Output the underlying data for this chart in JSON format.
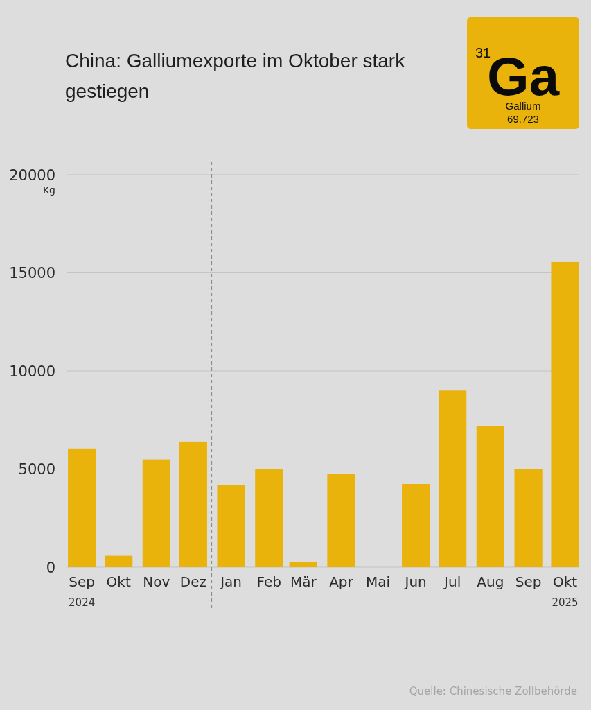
{
  "chart_data": {
    "type": "bar",
    "title": "China: Galliumexporte im Oktober stark gestiegen",
    "ylabel": "Kg",
    "x": [
      "2024-09",
      "2024-10",
      "2024-11",
      "2024-12",
      "2025-01",
      "2025-02",
      "2025-03",
      "2025-04",
      "2025-05",
      "2025-06",
      "2025-07",
      "2025-08",
      "2025-09",
      "2025-10"
    ],
    "values": [
      6050,
      580,
      5490,
      6400,
      4190,
      5000,
      270,
      4770,
      0,
      4240,
      9000,
      7180,
      5000,
      15550
    ],
    "color": "#e9b30c",
    "xlim": [
      "2024-08-20",
      "2025-10-12"
    ],
    "xticks": [
      {
        "value": "2024-09",
        "label": "Sep"
      },
      {
        "value": "2024-10",
        "label": "Okt"
      },
      {
        "value": "2024-11",
        "label": "Nov"
      },
      {
        "value": "2024-12",
        "label": "Dez"
      },
      {
        "value": "2025-01",
        "label": "Jan"
      },
      {
        "value": "2025-02",
        "label": "Feb"
      },
      {
        "value": "2025-03",
        "label": "Mär"
      },
      {
        "value": "2025-04",
        "label": "Apr"
      },
      {
        "value": "2025-05",
        "label": "Mai"
      },
      {
        "value": "2025-06",
        "label": "Jun"
      },
      {
        "value": "2025-07",
        "label": "Jul"
      },
      {
        "value": "2025-08",
        "label": "Aug"
      },
      {
        "value": "2025-09",
        "label": "Sep"
      },
      {
        "value": "2025-10",
        "label": "Okt"
      }
    ],
    "ylim": [
      0,
      20000
    ],
    "yticks": [
      0,
      5000,
      10000,
      15000,
      20000
    ],
    "grid": "y",
    "ref_lines": [
      {
        "axis": "x",
        "value": "2024-12-16",
        "color": "#8c8c8c",
        "line_style": "dashed"
      }
    ],
    "annotations": [
      "31",
      "Ga",
      "Gallium",
      "69.723",
      "2024",
      "2025",
      "Quelle: Chinesische Zollbehörde"
    ]
  }
}
